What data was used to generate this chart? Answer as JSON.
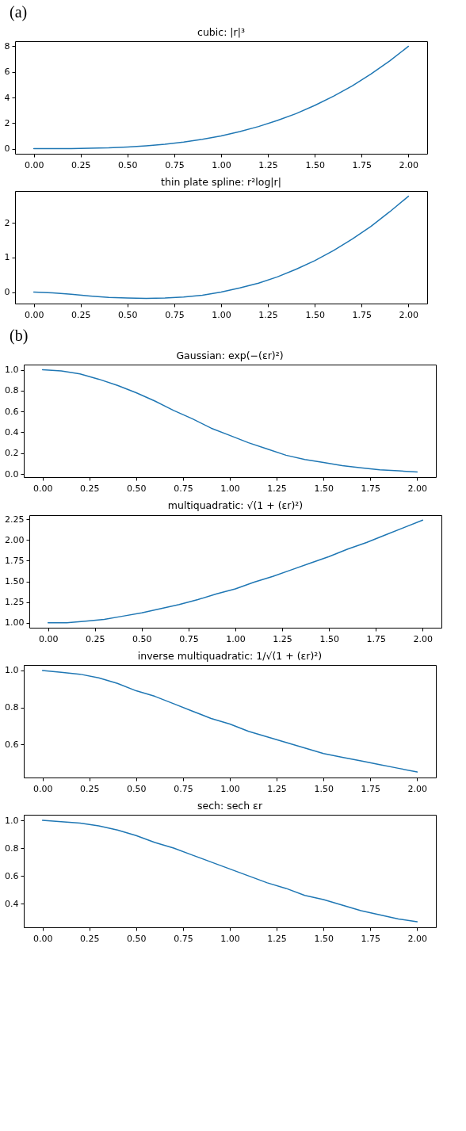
{
  "chart_data": [
    {
      "type": "line",
      "title": "cubic: |r|³",
      "annotations": [
        "(a)"
      ],
      "x": [
        0,
        0.1,
        0.2,
        0.3,
        0.4,
        0.5,
        0.6,
        0.7,
        0.8,
        0.9,
        1,
        1.1,
        1.2,
        1.3,
        1.4,
        1.5,
        1.6,
        1.7,
        1.8,
        1.9,
        2
      ],
      "series": [
        {
          "color": "#1f77b4",
          "values": [
            0,
            0,
            0.01,
            0.03,
            0.06,
            0.13,
            0.22,
            0.34,
            0.51,
            0.73,
            1,
            1.33,
            1.73,
            2.2,
            2.74,
            3.38,
            4.1,
            4.91,
            5.83,
            6.86,
            8
          ]
        }
      ],
      "xlim": [
        -0.1,
        2.1
      ],
      "xticks": [
        {
          "value": 0,
          "label": "0.00"
        },
        {
          "value": 0.25,
          "label": "0.25"
        },
        {
          "value": 0.5,
          "label": "0.50"
        },
        {
          "value": 0.75,
          "label": "0.75"
        },
        {
          "value": 1,
          "label": "1.00"
        },
        {
          "value": 1.25,
          "label": "1.25"
        },
        {
          "value": 1.5,
          "label": "1.50"
        },
        {
          "value": 1.75,
          "label": "1.75"
        },
        {
          "value": 2,
          "label": "2.00"
        }
      ],
      "ylim": [
        -0.4,
        8.4
      ],
      "yticks": [
        0,
        2,
        4,
        6,
        8
      ]
    },
    {
      "type": "line",
      "title": "thin plate spline: r²log|r|",
      "x": [
        0,
        0.1,
        0.2,
        0.3,
        0.4,
        0.5,
        0.6,
        0.7,
        0.8,
        0.9,
        1,
        1.1,
        1.2,
        1.3,
        1.4,
        1.5,
        1.6,
        1.7,
        1.8,
        1.9,
        2
      ],
      "series": [
        {
          "color": "#1f77b4",
          "values": [
            0,
            -0.02,
            -0.06,
            -0.11,
            -0.15,
            -0.17,
            -0.18,
            -0.17,
            -0.14,
            -0.09,
            0,
            0.12,
            0.26,
            0.44,
            0.66,
            0.91,
            1.2,
            1.53,
            1.9,
            2.32,
            2.77
          ]
        }
      ],
      "xlim": [
        -0.1,
        2.1
      ],
      "xticks": [
        {
          "value": 0,
          "label": "0.00"
        },
        {
          "value": 0.25,
          "label": "0.25"
        },
        {
          "value": 0.5,
          "label": "0.50"
        },
        {
          "value": 0.75,
          "label": "0.75"
        },
        {
          "value": 1,
          "label": "1.00"
        },
        {
          "value": 1.25,
          "label": "1.25"
        },
        {
          "value": 1.5,
          "label": "1.50"
        },
        {
          "value": 1.75,
          "label": "1.75"
        },
        {
          "value": 2,
          "label": "2.00"
        }
      ],
      "ylim": [
        -0.33,
        2.92
      ],
      "yticks": [
        0,
        1,
        2
      ]
    },
    {
      "type": "line",
      "title": "Gaussian: exp(−(εr)²)",
      "annotations": [
        "(b)"
      ],
      "x": [
        0,
        0.1,
        0.2,
        0.3,
        0.4,
        0.5,
        0.6,
        0.7,
        0.8,
        0.9,
        1,
        1.1,
        1.2,
        1.3,
        1.4,
        1.5,
        1.6,
        1.7,
        1.8,
        1.9,
        2
      ],
      "series": [
        {
          "color": "#1f77b4",
          "values": [
            1,
            0.99,
            0.96,
            0.91,
            0.85,
            0.78,
            0.7,
            0.61,
            0.53,
            0.44,
            0.37,
            0.3,
            0.24,
            0.18,
            0.14,
            0.11,
            0.08,
            0.06,
            0.04,
            0.03,
            0.02
          ]
        }
      ],
      "xlim": [
        -0.1,
        2.1
      ],
      "xticks": [
        {
          "value": 0,
          "label": "0.00"
        },
        {
          "value": 0.25,
          "label": "0.25"
        },
        {
          "value": 0.5,
          "label": "0.50"
        },
        {
          "value": 0.75,
          "label": "0.75"
        },
        {
          "value": 1,
          "label": "1.00"
        },
        {
          "value": 1.25,
          "label": "1.25"
        },
        {
          "value": 1.5,
          "label": "1.50"
        },
        {
          "value": 1.75,
          "label": "1.75"
        },
        {
          "value": 2,
          "label": "2.00"
        }
      ],
      "ylim": [
        -0.03,
        1.05
      ],
      "yticks": [
        {
          "value": 0,
          "label": "0.0"
        },
        {
          "value": 0.2,
          "label": "0.2"
        },
        {
          "value": 0.4,
          "label": "0.4"
        },
        {
          "value": 0.6,
          "label": "0.6"
        },
        {
          "value": 0.8,
          "label": "0.8"
        },
        {
          "value": 1,
          "label": "1.0"
        }
      ]
    },
    {
      "type": "line",
      "title": "multiquadratic: √(1 + (εr)²)",
      "x": [
        0,
        0.1,
        0.2,
        0.3,
        0.4,
        0.5,
        0.6,
        0.7,
        0.8,
        0.9,
        1,
        1.1,
        1.2,
        1.3,
        1.4,
        1.5,
        1.6,
        1.7,
        1.8,
        1.9,
        2
      ],
      "series": [
        {
          "color": "#1f77b4",
          "values": [
            1,
            1.0,
            1.02,
            1.04,
            1.08,
            1.12,
            1.17,
            1.22,
            1.28,
            1.35,
            1.41,
            1.49,
            1.56,
            1.64,
            1.72,
            1.8,
            1.89,
            1.97,
            2.06,
            2.15,
            2.24
          ]
        }
      ],
      "xlim": [
        -0.1,
        2.1
      ],
      "xticks": [
        {
          "value": 0,
          "label": "0.00"
        },
        {
          "value": 0.25,
          "label": "0.25"
        },
        {
          "value": 0.5,
          "label": "0.50"
        },
        {
          "value": 0.75,
          "label": "0.75"
        },
        {
          "value": 1,
          "label": "1.00"
        },
        {
          "value": 1.25,
          "label": "1.25"
        },
        {
          "value": 1.5,
          "label": "1.50"
        },
        {
          "value": 1.75,
          "label": "1.75"
        },
        {
          "value": 2,
          "label": "2.00"
        }
      ],
      "ylim": [
        0.94,
        2.3
      ],
      "yticks": [
        {
          "value": 1,
          "label": "1.00"
        },
        {
          "value": 1.25,
          "label": "1.25"
        },
        {
          "value": 1.5,
          "label": "1.50"
        },
        {
          "value": 1.75,
          "label": "1.75"
        },
        {
          "value": 2,
          "label": "2.00"
        },
        {
          "value": 2.25,
          "label": "2.25"
        }
      ]
    },
    {
      "type": "line",
      "title": "inverse multiquadratic: 1/√(1 + (εr)²)",
      "x": [
        0,
        0.1,
        0.2,
        0.3,
        0.4,
        0.5,
        0.6,
        0.7,
        0.8,
        0.9,
        1,
        1.1,
        1.2,
        1.3,
        1.4,
        1.5,
        1.6,
        1.7,
        1.8,
        1.9,
        2
      ],
      "series": [
        {
          "color": "#1f77b4",
          "values": [
            1,
            0.99,
            0.98,
            0.96,
            0.93,
            0.89,
            0.86,
            0.82,
            0.78,
            0.74,
            0.71,
            0.67,
            0.64,
            0.61,
            0.58,
            0.55,
            0.53,
            0.51,
            0.49,
            0.47,
            0.45
          ]
        }
      ],
      "xlim": [
        -0.1,
        2.1
      ],
      "xticks": [
        {
          "value": 0,
          "label": "0.00"
        },
        {
          "value": 0.25,
          "label": "0.25"
        },
        {
          "value": 0.5,
          "label": "0.50"
        },
        {
          "value": 0.75,
          "label": "0.75"
        },
        {
          "value": 1,
          "label": "1.00"
        },
        {
          "value": 1.25,
          "label": "1.25"
        },
        {
          "value": 1.5,
          "label": "1.50"
        },
        {
          "value": 1.75,
          "label": "1.75"
        },
        {
          "value": 2,
          "label": "2.00"
        }
      ],
      "ylim": [
        0.42,
        1.03
      ],
      "yticks": [
        {
          "value": 0.6,
          "label": "0.6"
        },
        {
          "value": 0.8,
          "label": "0.8"
        },
        {
          "value": 1,
          "label": "1.0"
        }
      ]
    },
    {
      "type": "line",
      "title": "sech: sech εr",
      "x": [
        0,
        0.1,
        0.2,
        0.3,
        0.4,
        0.5,
        0.6,
        0.7,
        0.8,
        0.9,
        1,
        1.1,
        1.2,
        1.3,
        1.4,
        1.5,
        1.6,
        1.7,
        1.8,
        1.9,
        2
      ],
      "series": [
        {
          "color": "#1f77b4",
          "values": [
            1,
            0.99,
            0.98,
            0.96,
            0.93,
            0.89,
            0.84,
            0.8,
            0.75,
            0.7,
            0.65,
            0.6,
            0.55,
            0.51,
            0.46,
            0.43,
            0.39,
            0.35,
            0.32,
            0.29,
            0.27
          ]
        }
      ],
      "xlim": [
        -0.1,
        2.1
      ],
      "xticks": [
        {
          "value": 0,
          "label": "0.00"
        },
        {
          "value": 0.25,
          "label": "0.25"
        },
        {
          "value": 0.5,
          "label": "0.50"
        },
        {
          "value": 0.75,
          "label": "0.75"
        },
        {
          "value": 1,
          "label": "1.00"
        },
        {
          "value": 1.25,
          "label": "1.25"
        },
        {
          "value": 1.5,
          "label": "1.50"
        },
        {
          "value": 1.75,
          "label": "1.75"
        },
        {
          "value": 2,
          "label": "2.00"
        }
      ],
      "ylim": [
        0.23,
        1.04
      ],
      "yticks": [
        {
          "value": 0.4,
          "label": "0.4"
        },
        {
          "value": 0.6,
          "label": "0.6"
        },
        {
          "value": 0.8,
          "label": "0.8"
        },
        {
          "value": 1,
          "label": "1.0"
        }
      ]
    }
  ]
}
